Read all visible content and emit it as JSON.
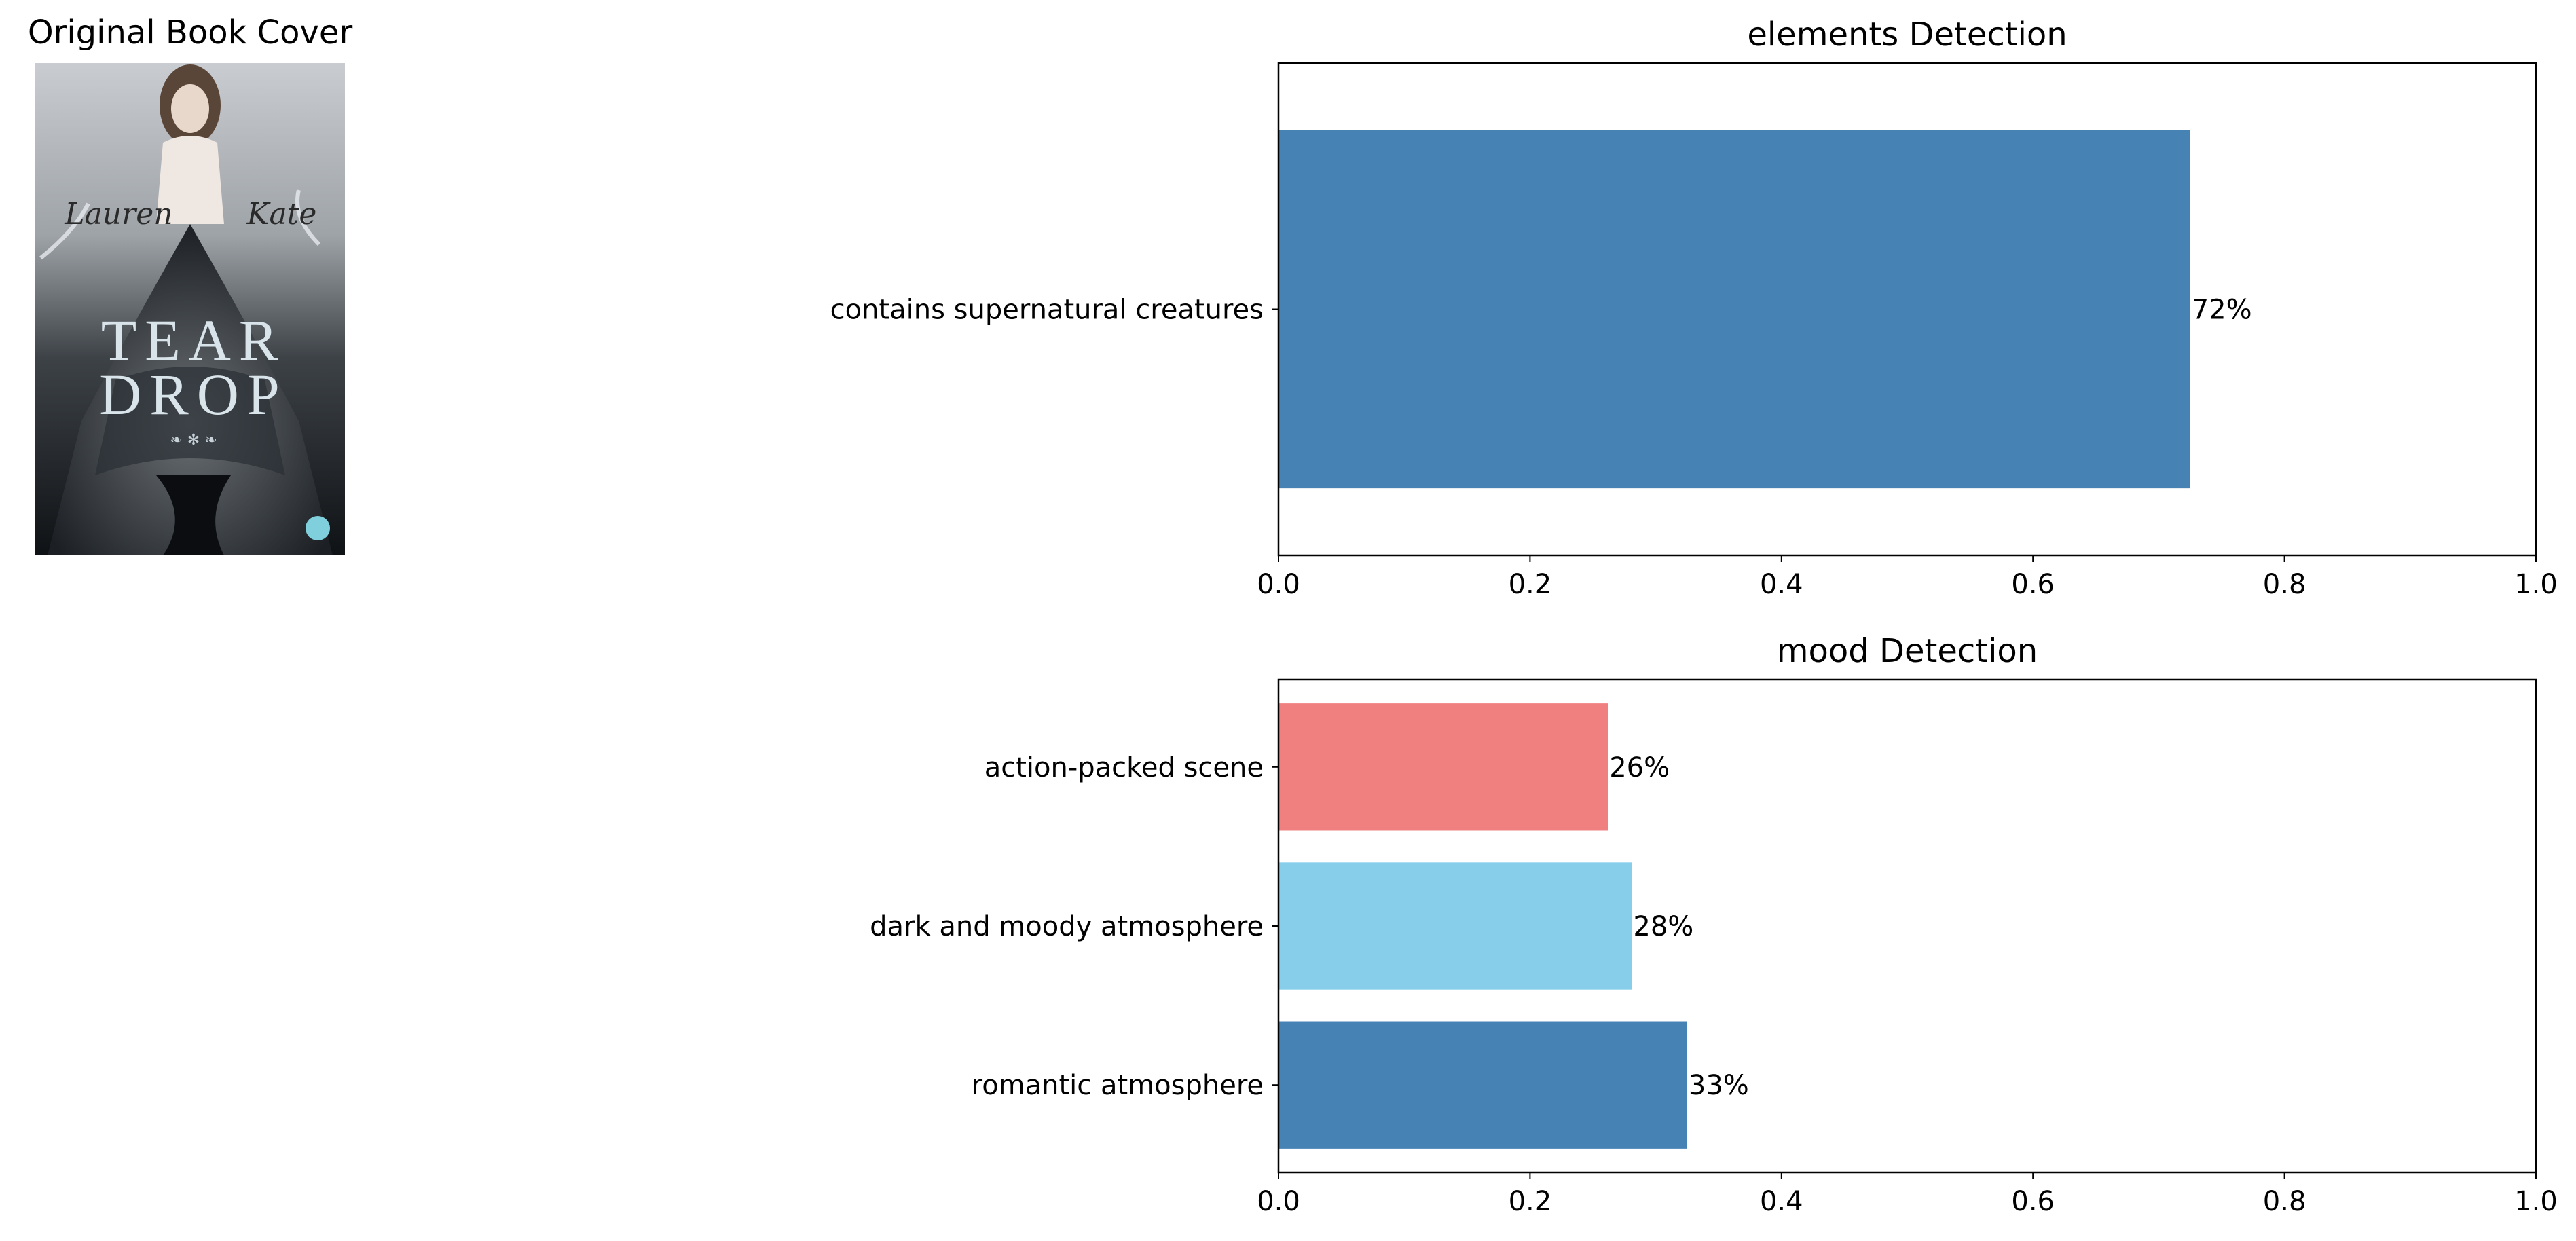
{
  "cover": {
    "title": "Original Book Cover",
    "author": "Lauren Kate",
    "book_line1": "TEAR",
    "book_line2": "DROP"
  },
  "chart_data": [
    {
      "type": "bar",
      "orientation": "horizontal",
      "title": "elements Detection",
      "xlabel": "",
      "ylabel": "",
      "categories": [
        "contains supernatural creatures"
      ],
      "values": [
        0.725
      ],
      "value_labels": [
        "72%"
      ],
      "colors": [
        "#4682b4"
      ],
      "xlim": [
        0,
        1.0
      ],
      "xticks": [
        "0.0",
        "0.2",
        "0.4",
        "0.6",
        "0.8",
        "1.0"
      ],
      "grid": false
    },
    {
      "type": "bar",
      "orientation": "horizontal",
      "title": "mood Detection",
      "xlabel": "",
      "ylabel": "",
      "categories": [
        "romantic atmosphere",
        "dark and moody atmosphere",
        "action-packed scene"
      ],
      "values": [
        0.325,
        0.281,
        0.262
      ],
      "value_labels": [
        "33%",
        "28%",
        "26%"
      ],
      "colors": [
        "#4682b4",
        "#87ceeb",
        "#f08080"
      ],
      "xlim": [
        0,
        1.0
      ],
      "xticks": [
        "0.0",
        "0.2",
        "0.4",
        "0.6",
        "0.8",
        "1.0"
      ],
      "grid": false
    }
  ]
}
